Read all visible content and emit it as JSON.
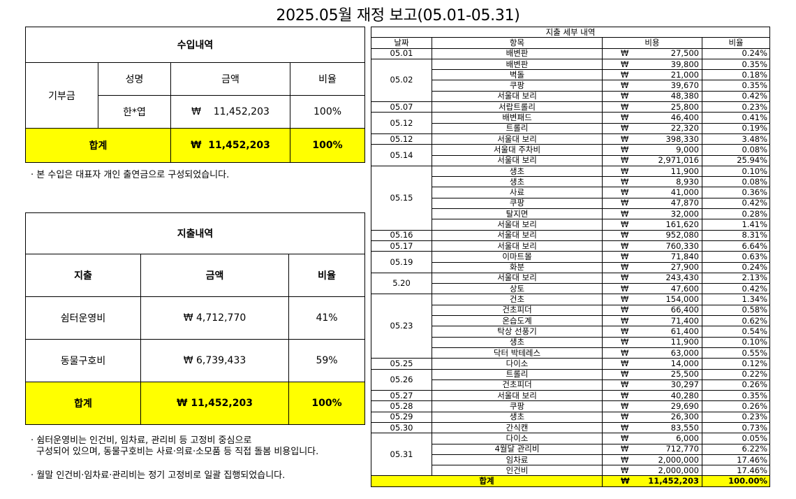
{
  "title": "2025.05월 재정 보고(05.01-05.31)",
  "income": {
    "header": "수입내역",
    "category": "기부금",
    "col_name": "성명",
    "col_amount": "금액",
    "col_ratio": "비율",
    "donor": "한*엽",
    "amount": "₩    11,452,203",
    "ratio": "100%",
    "total_label": "합계",
    "total_amount": "₩  11,452,203",
    "total_ratio": "100%",
    "note": "· 본 수입은 대표자 개인 출연금으로 구성되었습니다."
  },
  "expense": {
    "header": "지출내역",
    "col_item": "지출",
    "col_amount": "금액",
    "col_ratio": "비율",
    "rows": [
      {
        "item": "쉼터운영비",
        "amount": "₩ 4,712,770",
        "ratio": "41%"
      },
      {
        "item": "동물구호비",
        "amount": "₩ 6,739,433",
        "ratio": "59%"
      }
    ],
    "total_label": "합계",
    "total_amount": "₩ 11,452,203",
    "total_ratio": "100%",
    "note1": "· 쉼터운영비는 인건비, 임차료, 관리비 등 고정비 중심으로",
    "note2": "구성되어 있으며, 동물구호비는 사료·의료·소모품 등 직접 돌봄 비용입니다.",
    "note3": "· 월말 인건비·임차료·관리비는 정기 고정비로 일괄 집행되었습니다."
  },
  "detail": {
    "header": "지출 세부 내역",
    "col_date": "날짜",
    "col_item": "항목",
    "col_cost": "비용",
    "col_ratio": "비율",
    "currency": "₩",
    "groups": [
      {
        "date": "05.01",
        "items": [
          {
            "name": "배변판",
            "amount": "27,500",
            "ratio": "0.24%"
          }
        ]
      },
      {
        "date": "05.02",
        "items": [
          {
            "name": "배변판",
            "amount": "39,800",
            "ratio": "0.35%"
          },
          {
            "name": "벽돌",
            "amount": "21,000",
            "ratio": "0.18%"
          },
          {
            "name": "쿠팡",
            "amount": "39,670",
            "ratio": "0.35%"
          },
          {
            "name": "서울대 보리",
            "amount": "48,380",
            "ratio": "0.42%"
          }
        ]
      },
      {
        "date": "05.07",
        "items": [
          {
            "name": "서랍트롤리",
            "amount": "25,800",
            "ratio": "0.23%"
          }
        ]
      },
      {
        "date": "05.12",
        "items": [
          {
            "name": "배변패드",
            "amount": "46,400",
            "ratio": "0.41%"
          },
          {
            "name": "트롤리",
            "amount": "22,320",
            "ratio": "0.19%"
          }
        ]
      },
      {
        "date": "05.12",
        "items": [
          {
            "name": "서울대 보리",
            "amount": "398,330",
            "ratio": "3.48%"
          }
        ]
      },
      {
        "date": "05.14",
        "items": [
          {
            "name": "서울대 주차비",
            "amount": "9,000",
            "ratio": "0.08%"
          },
          {
            "name": "서울대 보리",
            "amount": "2,971,016",
            "ratio": "25.94%"
          }
        ]
      },
      {
        "date": "05.15",
        "items": [
          {
            "name": "생초",
            "amount": "11,900",
            "ratio": "0.10%"
          },
          {
            "name": "생초",
            "amount": "8,930",
            "ratio": "0.08%"
          },
          {
            "name": "사료",
            "amount": "41,000",
            "ratio": "0.36%"
          },
          {
            "name": "쿠팡",
            "amount": "47,870",
            "ratio": "0.42%"
          },
          {
            "name": "탈지면",
            "amount": "32,000",
            "ratio": "0.28%"
          },
          {
            "name": "서울대 보리",
            "amount": "161,620",
            "ratio": "1.41%"
          }
        ]
      },
      {
        "date": "05.16",
        "items": [
          {
            "name": "서울대 보리",
            "amount": "952,080",
            "ratio": "8.31%"
          }
        ]
      },
      {
        "date": "05.17",
        "items": [
          {
            "name": "서울대 보리",
            "amount": "760,330",
            "ratio": "6.64%"
          }
        ]
      },
      {
        "date": "05.19",
        "items": [
          {
            "name": "이마트몰",
            "amount": "71,840",
            "ratio": "0.63%"
          },
          {
            "name": "화분",
            "amount": "27,900",
            "ratio": "0.24%"
          }
        ]
      },
      {
        "date": "5.20",
        "items": [
          {
            "name": "서울대 보리",
            "amount": "243,430",
            "ratio": "2.13%"
          },
          {
            "name": "상토",
            "amount": "47,600",
            "ratio": "0.42%"
          }
        ]
      },
      {
        "date": "05.23",
        "items": [
          {
            "name": "건초",
            "amount": "154,000",
            "ratio": "1.34%"
          },
          {
            "name": "건초피더",
            "amount": "66,400",
            "ratio": "0.58%"
          },
          {
            "name": "온습도계",
            "amount": "71,400",
            "ratio": "0.62%"
          },
          {
            "name": "탁상 선풍기",
            "amount": "61,400",
            "ratio": "0.54%"
          },
          {
            "name": "생초",
            "amount": "11,900",
            "ratio": "0.10%"
          },
          {
            "name": "닥터 박테레스",
            "amount": "63,000",
            "ratio": "0.55%"
          }
        ]
      },
      {
        "date": "05.25",
        "items": [
          {
            "name": "다이소",
            "amount": "14,000",
            "ratio": "0.12%"
          }
        ]
      },
      {
        "date": "05.26",
        "items": [
          {
            "name": "트롤리",
            "amount": "25,500",
            "ratio": "0.22%"
          },
          {
            "name": "건초피더",
            "amount": "30,297",
            "ratio": "0.26%"
          }
        ]
      },
      {
        "date": "05.27",
        "items": [
          {
            "name": "서울대 보리",
            "amount": "40,280",
            "ratio": "0.35%"
          }
        ]
      },
      {
        "date": "05.28",
        "items": [
          {
            "name": "쿠팡",
            "amount": "29,690",
            "ratio": "0.26%"
          }
        ]
      },
      {
        "date": "05.29",
        "items": [
          {
            "name": "생초",
            "amount": "26,300",
            "ratio": "0.23%"
          }
        ]
      },
      {
        "date": "05.30",
        "items": [
          {
            "name": "간식캔",
            "amount": "83,550",
            "ratio": "0.73%"
          }
        ]
      },
      {
        "date": "05.31",
        "items": [
          {
            "name": "다이소",
            "amount": "6,000",
            "ratio": "0.05%"
          },
          {
            "name": "4월달 관리비",
            "amount": "712,770",
            "ratio": "6.22%"
          },
          {
            "name": "임차료",
            "amount": "2,000,000",
            "ratio": "17.46%"
          },
          {
            "name": "인건비",
            "amount": "2,000,000",
            "ratio": "17.46%"
          }
        ]
      }
    ],
    "total_label": "합계",
    "total_amount": "11,452,203",
    "total_ratio": "100.00%"
  }
}
